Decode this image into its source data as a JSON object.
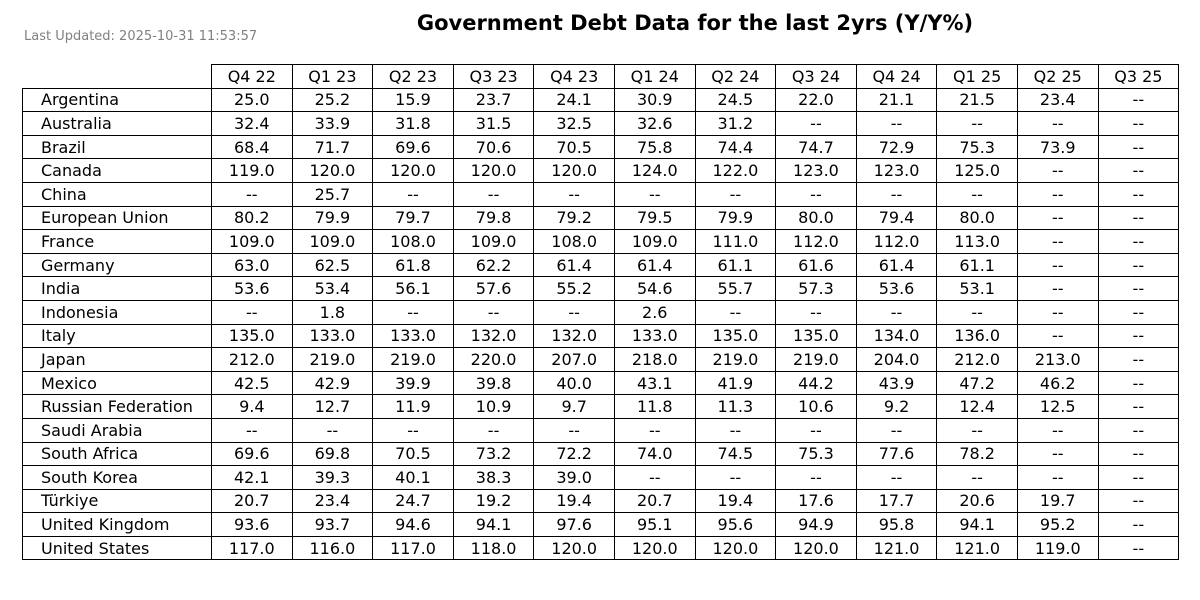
{
  "chart_data": {
    "type": "table",
    "title": "Government Debt Data for the last 2yrs (Y/Y%)",
    "subtitle": "Last Updated: 2025-10-31 11:53:57",
    "columns": [
      "Q4 22",
      "Q1 23",
      "Q2 23",
      "Q3 23",
      "Q4 23",
      "Q1 24",
      "Q2 24",
      "Q3 24",
      "Q4 24",
      "Q1 25",
      "Q2 25",
      "Q3 25"
    ],
    "rows": [
      {
        "label": "Argentina",
        "values": [
          "25.0",
          "25.2",
          "15.9",
          "23.7",
          "24.1",
          "30.9",
          "24.5",
          "22.0",
          "21.1",
          "21.5",
          "23.4",
          "--"
        ]
      },
      {
        "label": "Australia",
        "values": [
          "32.4",
          "33.9",
          "31.8",
          "31.5",
          "32.5",
          "32.6",
          "31.2",
          "--",
          "--",
          "--",
          "--",
          "--"
        ]
      },
      {
        "label": "Brazil",
        "values": [
          "68.4",
          "71.7",
          "69.6",
          "70.6",
          "70.5",
          "75.8",
          "74.4",
          "74.7",
          "72.9",
          "75.3",
          "73.9",
          "--"
        ]
      },
      {
        "label": "Canada",
        "values": [
          "119.0",
          "120.0",
          "120.0",
          "120.0",
          "120.0",
          "124.0",
          "122.0",
          "123.0",
          "123.0",
          "125.0",
          "--",
          "--"
        ]
      },
      {
        "label": "China",
        "values": [
          "--",
          "25.7",
          "--",
          "--",
          "--",
          "--",
          "--",
          "--",
          "--",
          "--",
          "--",
          "--"
        ]
      },
      {
        "label": "European Union",
        "values": [
          "80.2",
          "79.9",
          "79.7",
          "79.8",
          "79.2",
          "79.5",
          "79.9",
          "80.0",
          "79.4",
          "80.0",
          "--",
          "--"
        ]
      },
      {
        "label": "France",
        "values": [
          "109.0",
          "109.0",
          "108.0",
          "109.0",
          "108.0",
          "109.0",
          "111.0",
          "112.0",
          "112.0",
          "113.0",
          "--",
          "--"
        ]
      },
      {
        "label": "Germany",
        "values": [
          "63.0",
          "62.5",
          "61.8",
          "62.2",
          "61.4",
          "61.4",
          "61.1",
          "61.6",
          "61.4",
          "61.1",
          "--",
          "--"
        ]
      },
      {
        "label": "India",
        "values": [
          "53.6",
          "53.4",
          "56.1",
          "57.6",
          "55.2",
          "54.6",
          "55.7",
          "57.3",
          "53.6",
          "53.1",
          "--",
          "--"
        ]
      },
      {
        "label": "Indonesia",
        "values": [
          "--",
          "1.8",
          "--",
          "--",
          "--",
          "2.6",
          "--",
          "--",
          "--",
          "--",
          "--",
          "--"
        ]
      },
      {
        "label": "Italy",
        "values": [
          "135.0",
          "133.0",
          "133.0",
          "132.0",
          "132.0",
          "133.0",
          "135.0",
          "135.0",
          "134.0",
          "136.0",
          "--",
          "--"
        ]
      },
      {
        "label": "Japan",
        "values": [
          "212.0",
          "219.0",
          "219.0",
          "220.0",
          "207.0",
          "218.0",
          "219.0",
          "219.0",
          "204.0",
          "212.0",
          "213.0",
          "--"
        ]
      },
      {
        "label": "Mexico",
        "values": [
          "42.5",
          "42.9",
          "39.9",
          "39.8",
          "40.0",
          "43.1",
          "41.9",
          "44.2",
          "43.9",
          "47.2",
          "46.2",
          "--"
        ]
      },
      {
        "label": "Russian Federation",
        "values": [
          "9.4",
          "12.7",
          "11.9",
          "10.9",
          "9.7",
          "11.8",
          "11.3",
          "10.6",
          "9.2",
          "12.4",
          "12.5",
          "--"
        ]
      },
      {
        "label": "Saudi Arabia",
        "values": [
          "--",
          "--",
          "--",
          "--",
          "--",
          "--",
          "--",
          "--",
          "--",
          "--",
          "--",
          "--"
        ]
      },
      {
        "label": "South Africa",
        "values": [
          "69.6",
          "69.8",
          "70.5",
          "73.2",
          "72.2",
          "74.0",
          "74.5",
          "75.3",
          "77.6",
          "78.2",
          "--",
          "--"
        ]
      },
      {
        "label": "South Korea",
        "values": [
          "42.1",
          "39.3",
          "40.1",
          "38.3",
          "39.0",
          "--",
          "--",
          "--",
          "--",
          "--",
          "--",
          "--"
        ]
      },
      {
        "label": "Türkiye",
        "values": [
          "20.7",
          "23.4",
          "24.7",
          "19.2",
          "19.4",
          "20.7",
          "19.4",
          "17.6",
          "17.7",
          "20.6",
          "19.7",
          "--"
        ]
      },
      {
        "label": "United Kingdom",
        "values": [
          "93.6",
          "93.7",
          "94.6",
          "94.1",
          "97.6",
          "95.1",
          "95.6",
          "94.9",
          "95.8",
          "94.1",
          "95.2",
          "--"
        ]
      },
      {
        "label": "United States",
        "values": [
          "117.0",
          "116.0",
          "117.0",
          "118.0",
          "120.0",
          "120.0",
          "120.0",
          "120.0",
          "121.0",
          "121.0",
          "119.0",
          "--"
        ]
      }
    ]
  }
}
